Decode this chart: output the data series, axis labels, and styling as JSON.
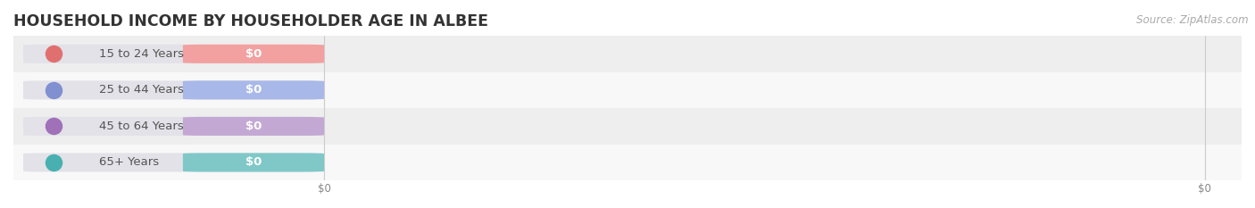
{
  "title": "HOUSEHOLD INCOME BY HOUSEHOLDER AGE IN ALBEE",
  "source": "Source: ZipAtlas.com",
  "categories": [
    "15 to 24 Years",
    "25 to 44 Years",
    "45 to 64 Years",
    "65+ Years"
  ],
  "values": [
    0,
    0,
    0,
    0
  ],
  "bar_colors": [
    "#f2a0a0",
    "#a8b8e8",
    "#c4a8d4",
    "#80c8c8"
  ],
  "dot_colors": [
    "#e07070",
    "#8090d0",
    "#a070b8",
    "#48b0b0"
  ],
  "bg_row_colors": [
    "#eeeeee",
    "#f8f8f8"
  ],
  "pill_bg_color": "#e2e2e8",
  "label_color": "#555555",
  "value_label_color": "#ffffff",
  "title_color": "#333333",
  "source_color": "#aaaaaa",
  "figwidth": 14.06,
  "figheight": 2.33,
  "bar_height": 0.52,
  "title_fontsize": 12.5,
  "label_fontsize": 9.5,
  "source_fontsize": 8.5
}
